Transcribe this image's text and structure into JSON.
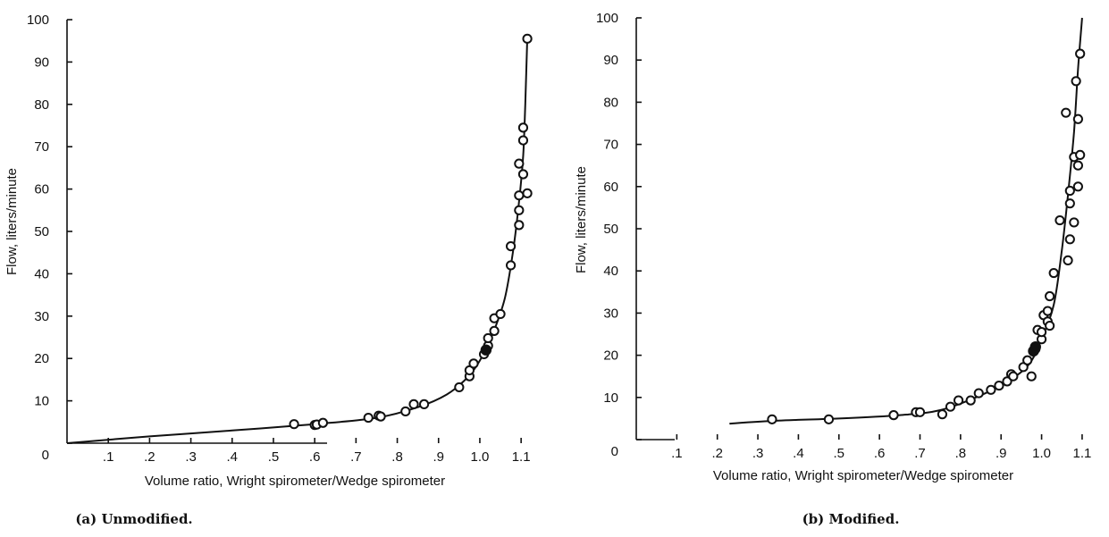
{
  "chart_data": [
    {
      "type": "scatter",
      "panel": "a",
      "caption": "(a) Unmodified.",
      "xlabel": "Volume ratio, Wright spirometer/Wedge spirometer",
      "ylabel": "Flow, liters/minute",
      "xlim": [
        0,
        1.13
      ],
      "ylim": [
        0,
        100
      ],
      "x_ticks": [
        0.1,
        0.2,
        0.3,
        0.4,
        0.5,
        0.6,
        0.7,
        0.8,
        0.9,
        1.0,
        1.1
      ],
      "x_tick_labels": [
        ".1",
        ".2",
        ".3",
        ".4",
        ".5",
        ".6",
        ".7",
        ".8",
        ".9",
        "1.0",
        "1.1"
      ],
      "y_ticks": [
        0,
        10,
        20,
        30,
        40,
        50,
        60,
        70,
        80,
        90,
        100
      ],
      "y_tick_labels": [
        "0",
        "10",
        "20",
        "30",
        "40",
        "50",
        "60",
        "70",
        "80",
        "90",
        "100"
      ],
      "grid": false,
      "series": [
        {
          "role": "data points",
          "points": [
            [
              0.55,
              4.5
            ],
            [
              0.6,
              4.3
            ],
            [
              0.605,
              4.4
            ],
            [
              0.62,
              4.8
            ],
            [
              0.73,
              6.0
            ],
            [
              0.755,
              6.5
            ],
            [
              0.76,
              6.3
            ],
            [
              0.82,
              7.5
            ],
            [
              0.84,
              9.2
            ],
            [
              0.865,
              9.2
            ],
            [
              0.95,
              13.2
            ],
            [
              0.975,
              15.8
            ],
            [
              0.975,
              17.2
            ],
            [
              0.985,
              18.8
            ],
            [
              1.01,
              21.0
            ],
            [
              1.015,
              22.0
            ],
            [
              1.02,
              23.0
            ],
            [
              1.02,
              24.8
            ],
            [
              1.035,
              26.5
            ],
            [
              1.035,
              29.5
            ],
            [
              1.05,
              30.5
            ],
            [
              1.075,
              42.0
            ],
            [
              1.075,
              46.5
            ],
            [
              1.095,
              51.5
            ],
            [
              1.095,
              55.0
            ],
            [
              1.095,
              58.5
            ],
            [
              1.095,
              66.0
            ],
            [
              1.105,
              63.5
            ],
            [
              1.115,
              59.0
            ],
            [
              1.105,
              71.5
            ],
            [
              1.105,
              74.5
            ],
            [
              1.115,
              95.5
            ]
          ]
        },
        {
          "role": "fitted curve",
          "points": [
            [
              0,
              0
            ],
            [
              0.2,
              1.6
            ],
            [
              0.4,
              3.0
            ],
            [
              0.6,
              4.5
            ],
            [
              0.75,
              6.0
            ],
            [
              0.85,
              8.5
            ],
            [
              0.92,
              11.5
            ],
            [
              0.97,
              15.5
            ],
            [
              1.0,
              19.5
            ],
            [
              1.03,
              25.5
            ],
            [
              1.06,
              34.0
            ],
            [
              1.08,
              45.0
            ],
            [
              1.095,
              57.0
            ],
            [
              1.105,
              68.0
            ],
            [
              1.11,
              80.0
            ],
            [
              1.115,
              96.0
            ]
          ]
        }
      ],
      "filled_points": [
        [
          1.015,
          22.0
        ]
      ]
    },
    {
      "type": "scatter",
      "panel": "b",
      "caption": "(b) Modified.",
      "xlabel": "Volume ratio, Wright spirometer/Wedge spirometer",
      "ylabel": "Flow, liters/minute",
      "xlim": [
        0,
        1.12
      ],
      "ylim": [
        0,
        100
      ],
      "x_ticks": [
        0.1,
        0.2,
        0.3,
        0.4,
        0.5,
        0.6,
        0.7,
        0.8,
        0.9,
        1.0,
        1.1
      ],
      "x_tick_labels": [
        ".1",
        ".2",
        ".3",
        ".4",
        ".5",
        ".6",
        ".7",
        ".8",
        ".9",
        "1.0",
        "1.1"
      ],
      "y_ticks": [
        0,
        10,
        20,
        30,
        40,
        50,
        60,
        70,
        80,
        90,
        100
      ],
      "y_tick_labels": [
        "0",
        "10",
        "20",
        "30",
        "40",
        "50",
        "60",
        "70",
        "80",
        "90",
        "100"
      ],
      "grid": false,
      "series": [
        {
          "role": "data points",
          "points": [
            [
              0.335,
              4.8
            ],
            [
              0.475,
              4.8
            ],
            [
              0.635,
              5.8
            ],
            [
              0.69,
              6.5
            ],
            [
              0.7,
              6.5
            ],
            [
              0.755,
              6.0
            ],
            [
              0.775,
              7.8
            ],
            [
              0.795,
              9.3
            ],
            [
              0.825,
              9.3
            ],
            [
              0.845,
              11.0
            ],
            [
              0.875,
              11.8
            ],
            [
              0.895,
              12.8
            ],
            [
              0.915,
              13.8
            ],
            [
              0.925,
              15.5
            ],
            [
              0.93,
              15.0
            ],
            [
              0.955,
              17.2
            ],
            [
              0.965,
              18.8
            ],
            [
              0.975,
              15.0
            ],
            [
              0.98,
              21.0
            ],
            [
              0.985,
              21.5
            ],
            [
              0.99,
              26.0
            ],
            [
              1.0,
              23.8
            ],
            [
              1.0,
              25.5
            ],
            [
              1.005,
              29.5
            ],
            [
              1.015,
              30.5
            ],
            [
              1.015,
              28.0
            ],
            [
              1.02,
              27.0
            ],
            [
              1.02,
              34.0
            ],
            [
              1.03,
              39.5
            ],
            [
              1.045,
              52.0
            ],
            [
              1.06,
              77.5
            ],
            [
              1.065,
              42.5
            ],
            [
              1.07,
              47.5
            ],
            [
              1.07,
              56.0
            ],
            [
              1.07,
              59.0
            ],
            [
              1.08,
              51.5
            ],
            [
              1.08,
              67.0
            ],
            [
              1.085,
              85.0
            ],
            [
              1.09,
              76.0
            ],
            [
              1.09,
              65.0
            ],
            [
              1.09,
              60.0
            ],
            [
              1.095,
              67.5
            ],
            [
              1.095,
              91.5
            ]
          ]
        },
        {
          "role": "fitted curve",
          "points": [
            [
              0.23,
              3.8
            ],
            [
              0.35,
              4.5
            ],
            [
              0.5,
              5.0
            ],
            [
              0.65,
              5.8
            ],
            [
              0.75,
              7.0
            ],
            [
              0.85,
              10.5
            ],
            [
              0.92,
              14.0
            ],
            [
              0.97,
              18.0
            ],
            [
              1.0,
              24.0
            ],
            [
              1.03,
              32.0
            ],
            [
              1.05,
              45.0
            ],
            [
              1.065,
              58.0
            ],
            [
              1.08,
              73.0
            ],
            [
              1.09,
              88.0
            ],
            [
              1.1,
              100.0
            ]
          ]
        }
      ],
      "filled_points": [
        [
          0.98,
          21.0
        ],
        [
          0.985,
          22.0
        ]
      ]
    }
  ]
}
